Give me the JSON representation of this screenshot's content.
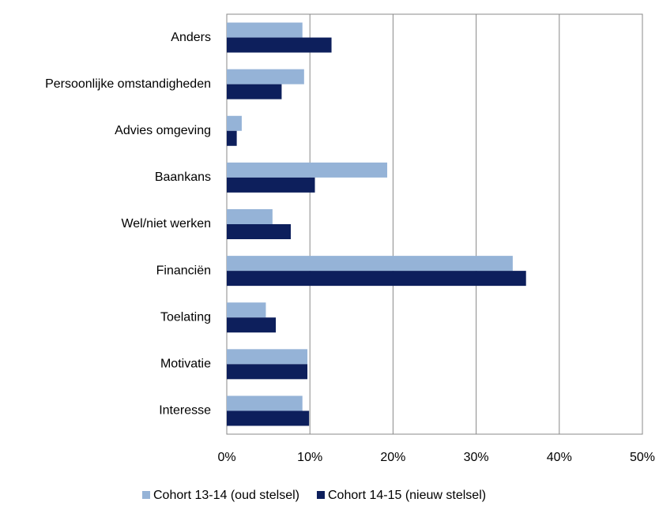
{
  "chart_data": {
    "type": "hbar",
    "categories": [
      "Anders",
      "Persoonlijke omstandigheden",
      "Advies omgeving",
      "Baankans",
      "Wel/niet werken",
      "Financiën",
      "Toelating",
      "Motivatie",
      "Interesse"
    ],
    "series": [
      {
        "name": "Cohort 13-14 (oud stelsel)",
        "color": "#95b3d7",
        "values": [
          9.1,
          9.3,
          1.8,
          19.3,
          5.5,
          34.4,
          4.7,
          9.7,
          9.1
        ]
      },
      {
        "name": "Cohort 14-15 (nieuw stelsel)",
        "color": "#0d1f5c",
        "values": [
          12.6,
          6.6,
          1.2,
          10.6,
          7.7,
          36.0,
          5.9,
          9.7,
          9.9
        ]
      }
    ],
    "xlim": [
      0,
      50
    ],
    "xticks": [
      {
        "value": 0,
        "label": "0%"
      },
      {
        "value": 10,
        "label": "10%"
      },
      {
        "value": 20,
        "label": "20%"
      },
      {
        "value": 30,
        "label": "30%"
      },
      {
        "value": 40,
        "label": "40%"
      },
      {
        "value": 50,
        "label": "50%"
      }
    ],
    "grid": true,
    "legend": "bottom"
  }
}
